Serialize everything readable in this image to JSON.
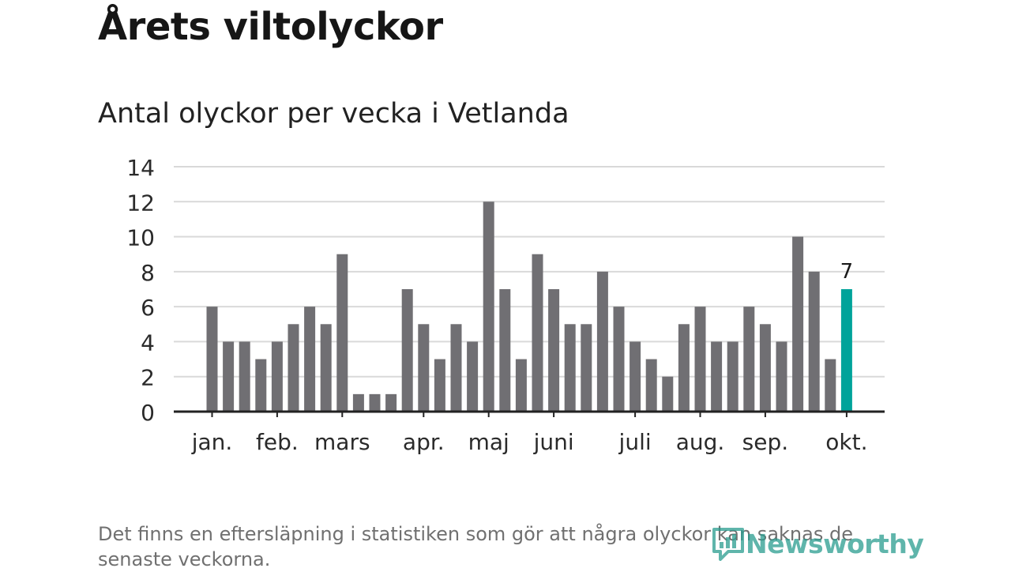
{
  "title": "Årets viltolyckor",
  "subtitle": "Antal olyckor per vecka i Vetlanda",
  "footnote": "Det finns en eftersläpning i statistiken som gör att några olyckor kan saknas de senaste veckorna.",
  "brand": {
    "name": "Newsworthy"
  },
  "colors": {
    "bar": "#706f73",
    "highlight": "#00a39a",
    "grid": "#d9d9d9",
    "axis": "#222222",
    "logo": "#2a9d8f"
  },
  "chart_data": {
    "type": "bar",
    "title": "Antal olyckor per vecka i Vetlanda",
    "xlabel": "",
    "ylabel": "",
    "ylim": [
      0,
      14
    ],
    "yticks": [
      0,
      2,
      4,
      6,
      8,
      10,
      12,
      14
    ],
    "grid": true,
    "values": [
      6,
      4,
      4,
      3,
      4,
      5,
      6,
      5,
      9,
      1,
      1,
      1,
      7,
      5,
      3,
      5,
      4,
      12,
      7,
      3,
      9,
      7,
      5,
      5,
      8,
      6,
      4,
      3,
      2,
      5,
      6,
      4,
      4,
      6,
      5,
      4,
      10,
      8,
      3,
      7
    ],
    "highlight_index": 39,
    "highlight_label": "7",
    "month_labels": [
      {
        "label": "jan.",
        "week": 0
      },
      {
        "label": "feb.",
        "week": 4
      },
      {
        "label": "mars",
        "week": 8
      },
      {
        "label": "apr.",
        "week": 13
      },
      {
        "label": "maj",
        "week": 17
      },
      {
        "label": "juni",
        "week": 21
      },
      {
        "label": "juli",
        "week": 26
      },
      {
        "label": "aug.",
        "week": 30
      },
      {
        "label": "sep.",
        "week": 34
      },
      {
        "label": "okt.",
        "week": 39
      }
    ]
  }
}
